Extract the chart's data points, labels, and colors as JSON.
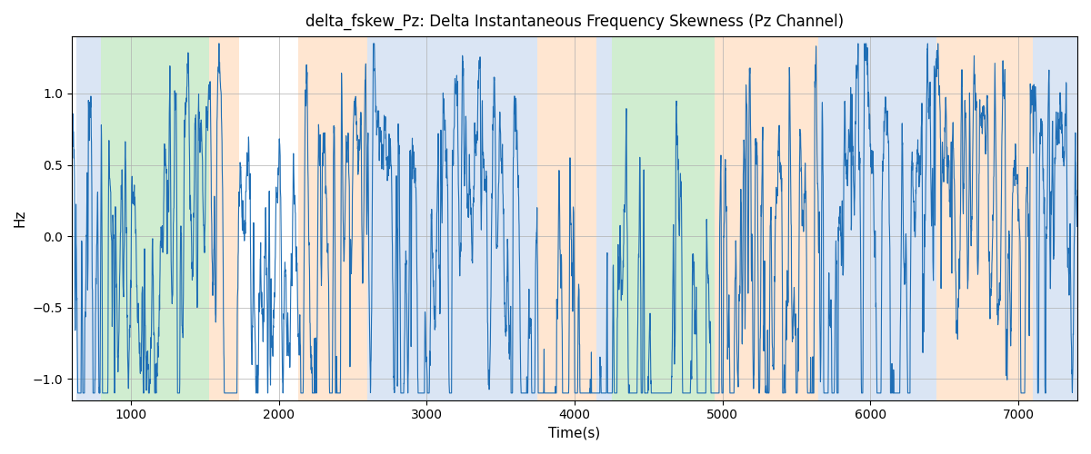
{
  "title": "delta_fskew_Pz: Delta Instantaneous Frequency Skewness (Pz Channel)",
  "xlabel": "Time(s)",
  "ylabel": "Hz",
  "xlim": [
    600,
    7400
  ],
  "ylim": [
    -1.15,
    1.4
  ],
  "line_color": "#1f6eb5",
  "line_width": 0.8,
  "grid_color": "#b0b0b0",
  "bg_bands": [
    {
      "xmin": 630,
      "xmax": 800,
      "color": "#aec6e8",
      "alpha": 0.45
    },
    {
      "xmin": 800,
      "xmax": 1530,
      "color": "#98d898",
      "alpha": 0.45
    },
    {
      "xmin": 1530,
      "xmax": 1730,
      "color": "#ffc89a",
      "alpha": 0.45
    },
    {
      "xmin": 1730,
      "xmax": 2130,
      "color": "#aec6e8",
      "alpha": 0.0
    },
    {
      "xmin": 2130,
      "xmax": 2600,
      "color": "#ffc89a",
      "alpha": 0.45
    },
    {
      "xmin": 2600,
      "xmax": 3750,
      "color": "#aec6e8",
      "alpha": 0.45
    },
    {
      "xmin": 3750,
      "xmax": 4150,
      "color": "#ffc89a",
      "alpha": 0.45
    },
    {
      "xmin": 4150,
      "xmax": 4250,
      "color": "#aec6e8",
      "alpha": 0.45
    },
    {
      "xmin": 4250,
      "xmax": 4950,
      "color": "#98d898",
      "alpha": 0.45
    },
    {
      "xmin": 4950,
      "xmax": 5650,
      "color": "#ffc89a",
      "alpha": 0.45
    },
    {
      "xmin": 5650,
      "xmax": 6450,
      "color": "#aec6e8",
      "alpha": 0.45
    },
    {
      "xmin": 6450,
      "xmax": 7100,
      "color": "#ffc89a",
      "alpha": 0.45
    },
    {
      "xmin": 7100,
      "xmax": 7400,
      "color": "#aec6e8",
      "alpha": 0.45
    }
  ],
  "figsize": [
    12.0,
    5.0
  ],
  "dpi": 100,
  "yticks": [
    -1.0,
    -0.5,
    0.0,
    0.5,
    1.0
  ],
  "xticks": [
    1000,
    2000,
    3000,
    4000,
    5000,
    6000,
    7000
  ]
}
